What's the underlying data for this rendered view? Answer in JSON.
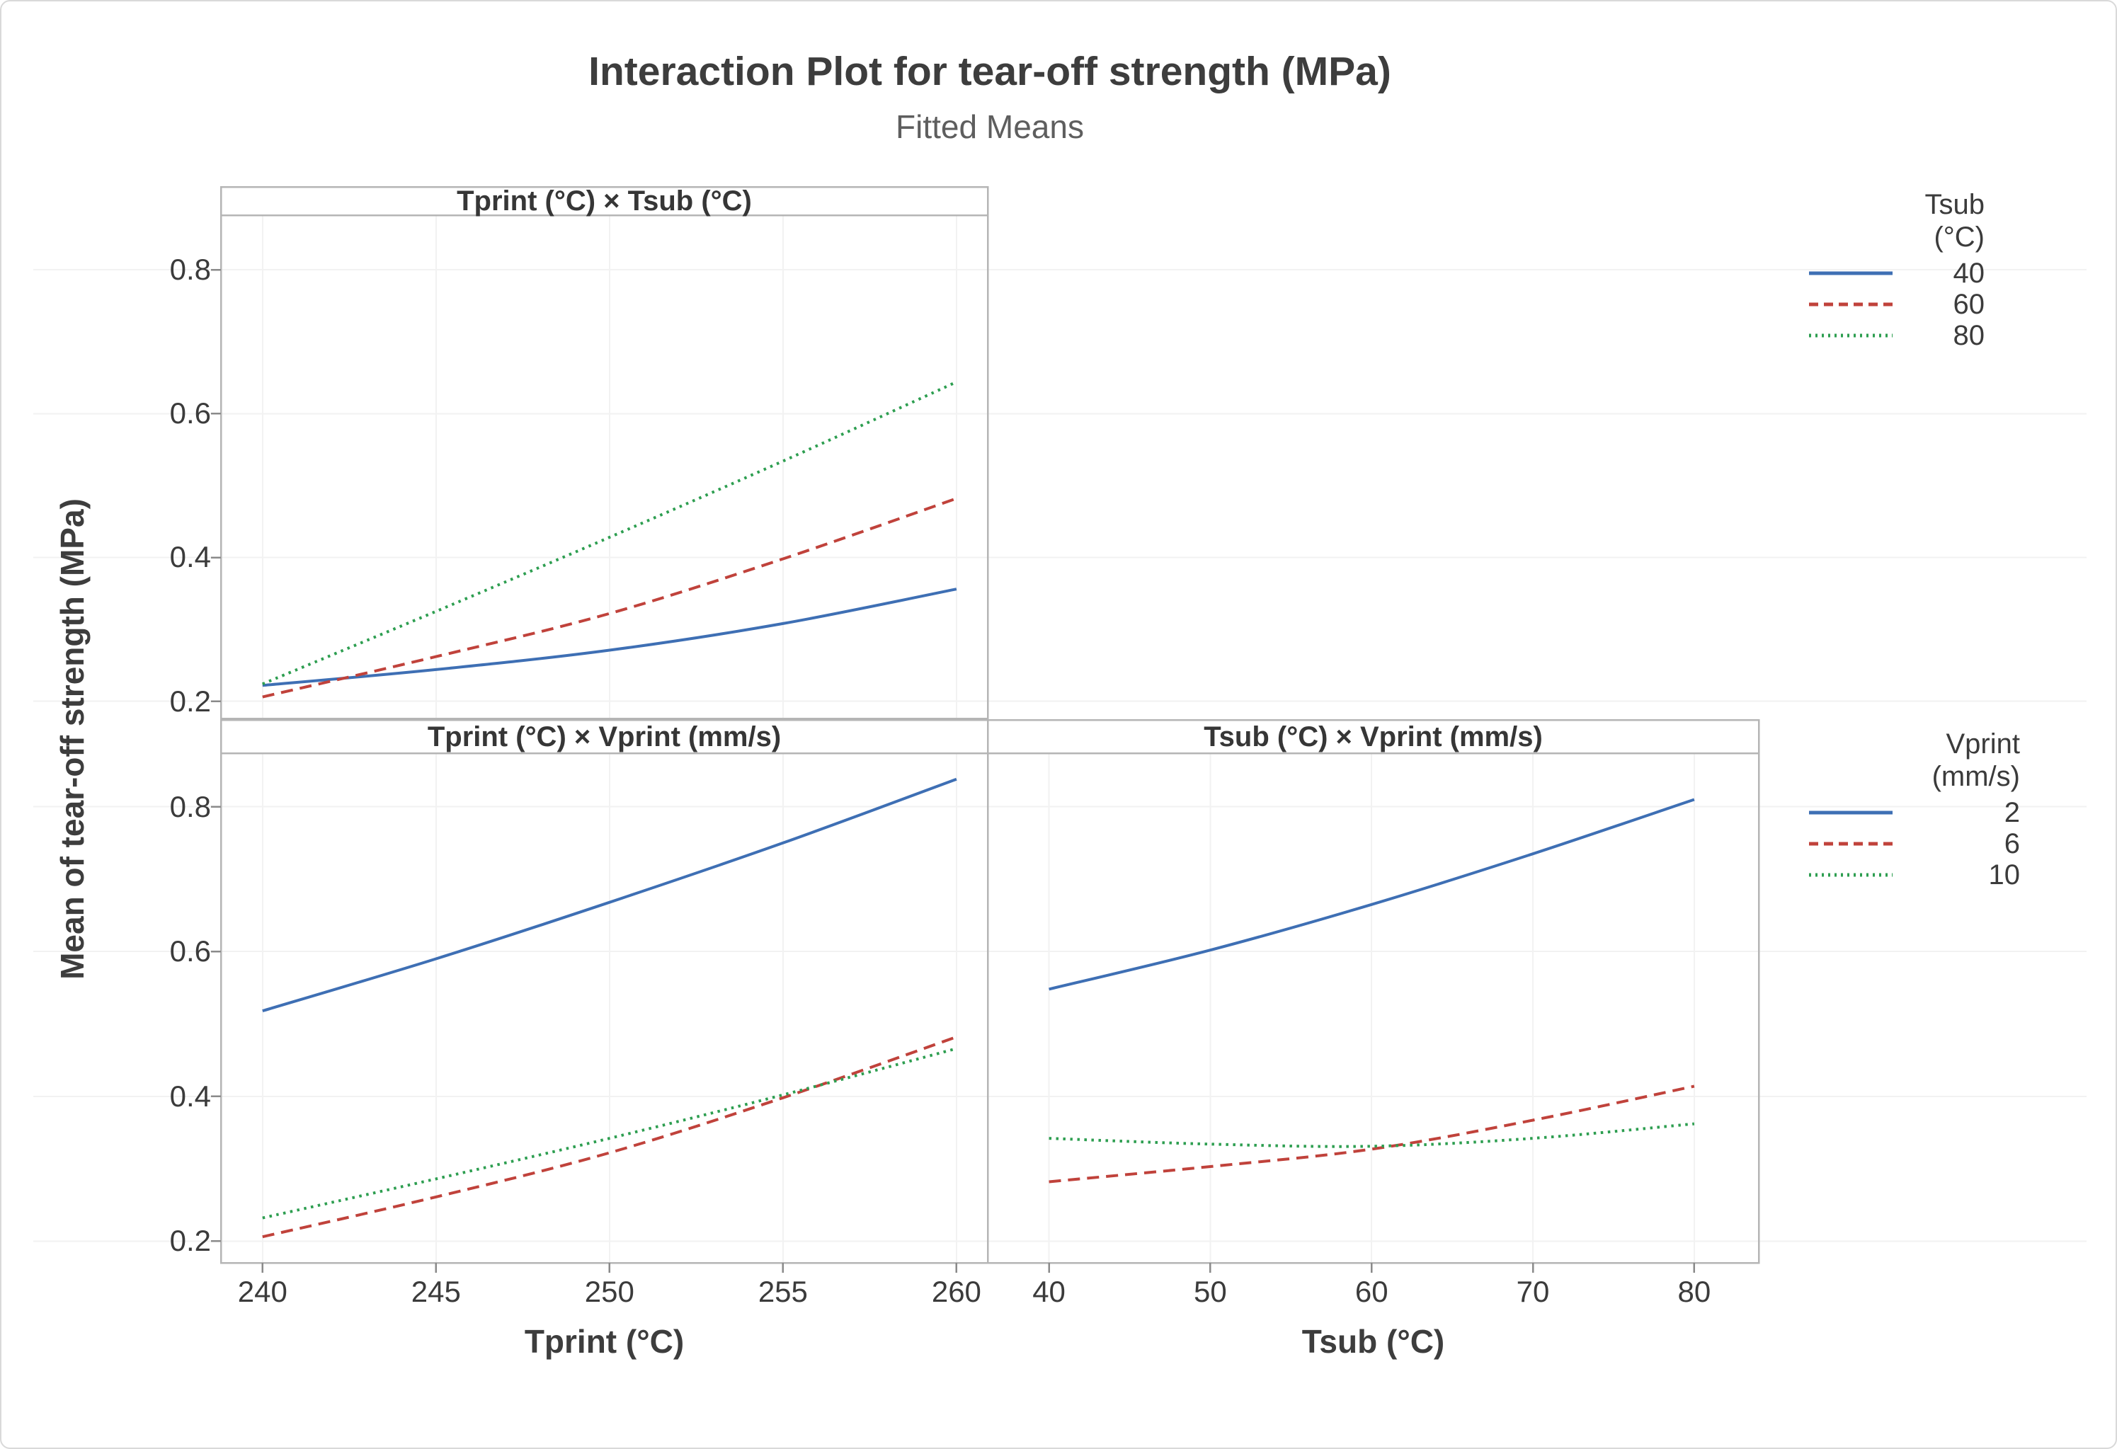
{
  "title": "Interaction Plot for tear-off strength (MPa)",
  "subtitle": "Fitted Means",
  "y_axis_label": "Mean of tear-off strength (MPa)",
  "palette": {
    "blue": "#3e6fb4",
    "red": "#c0423b",
    "green": "#2d9e50"
  },
  "grid_color": "#f2f2f2",
  "border_color": "#b5b5b5",
  "tick_color": "#8a8a8a",
  "legends": [
    {
      "title_lines": [
        "Tsub",
        "(°C)"
      ],
      "entries": [
        {
          "label": "40",
          "color": "#3e6fb4",
          "dash": "solid"
        },
        {
          "label": "60",
          "color": "#c0423b",
          "dash": "dashed"
        },
        {
          "label": "80",
          "color": "#2d9e50",
          "dash": "dotted"
        }
      ]
    },
    {
      "title_lines": [
        "Vprint",
        "(mm/s)"
      ],
      "entries": [
        {
          "label": "2",
          "color": "#3e6fb4",
          "dash": "solid"
        },
        {
          "label": "6",
          "color": "#c0423b",
          "dash": "dashed"
        },
        {
          "label": "10",
          "color": "#2d9e50",
          "dash": "dotted"
        }
      ]
    }
  ],
  "chart_data": [
    {
      "type": "line",
      "title": "Tprint (°C) × Tsub (°C)",
      "xlabel": "",
      "ylabel": "Mean of tear-off strength (MPa)",
      "legend_group": "Tsub (°C)",
      "x": [
        240,
        245,
        250,
        255,
        260
      ],
      "xticks": [
        240,
        245,
        250,
        255,
        260
      ],
      "yticks": [
        0.2,
        0.4,
        0.6,
        0.8
      ],
      "xlim": [
        238.8,
        260.9
      ],
      "ylim": [
        0.176,
        0.876
      ],
      "grid": true,
      "series": [
        {
          "name": "40",
          "color": "#3e6fb4",
          "dash": "solid",
          "values": [
            0.222,
            0.244,
            0.271,
            0.308,
            0.356
          ]
        },
        {
          "name": "60",
          "color": "#c0423b",
          "dash": "dashed",
          "values": [
            0.206,
            0.262,
            0.322,
            0.398,
            0.482
          ]
        },
        {
          "name": "80",
          "color": "#2d9e50",
          "dash": "dotted",
          "values": [
            0.224,
            0.325,
            0.428,
            0.534,
            0.644
          ]
        }
      ]
    },
    {
      "type": "line",
      "title": "Tprint (°C) × Vprint (mm/s)",
      "xlabel": "Tprint (°C)",
      "ylabel": "Mean of tear-off strength (MPa)",
      "legend_group": "Vprint (mm/s)",
      "x": [
        240,
        245,
        250,
        255,
        260
      ],
      "xticks": [
        240,
        245,
        250,
        255,
        260
      ],
      "yticks": [
        0.2,
        0.4,
        0.6,
        0.8
      ],
      "xlim": [
        238.8,
        260.9
      ],
      "ylim": [
        0.17,
        0.874
      ],
      "grid": true,
      "series": [
        {
          "name": "2",
          "color": "#3e6fb4",
          "dash": "solid",
          "values": [
            0.518,
            0.59,
            0.668,
            0.75,
            0.838
          ]
        },
        {
          "name": "6",
          "color": "#c0423b",
          "dash": "dashed",
          "values": [
            0.206,
            0.261,
            0.322,
            0.398,
            0.482
          ]
        },
        {
          "name": "10",
          "color": "#2d9e50",
          "dash": "dotted",
          "values": [
            0.232,
            0.286,
            0.342,
            0.402,
            0.466
          ]
        }
      ]
    },
    {
      "type": "line",
      "title": "Tsub (°C) × Vprint (mm/s)",
      "xlabel": "Tsub (°C)",
      "ylabel": "Mean of tear-off strength (MPa)",
      "legend_group": "Vprint (mm/s)",
      "x": [
        40,
        50,
        60,
        70,
        80
      ],
      "xticks": [
        40,
        50,
        60,
        70,
        80
      ],
      "yticks": [
        0.2,
        0.4,
        0.6,
        0.8
      ],
      "xlim": [
        36.2,
        84.0
      ],
      "ylim": [
        0.17,
        0.874
      ],
      "grid": true,
      "series": [
        {
          "name": "2",
          "color": "#3e6fb4",
          "dash": "solid",
          "values": [
            0.548,
            0.602,
            0.665,
            0.735,
            0.81
          ]
        },
        {
          "name": "6",
          "color": "#c0423b",
          "dash": "dashed",
          "values": [
            0.282,
            0.303,
            0.327,
            0.367,
            0.414
          ]
        },
        {
          "name": "10",
          "color": "#2d9e50",
          "dash": "dotted",
          "values": [
            0.342,
            0.334,
            0.331,
            0.342,
            0.362
          ]
        }
      ]
    }
  ]
}
